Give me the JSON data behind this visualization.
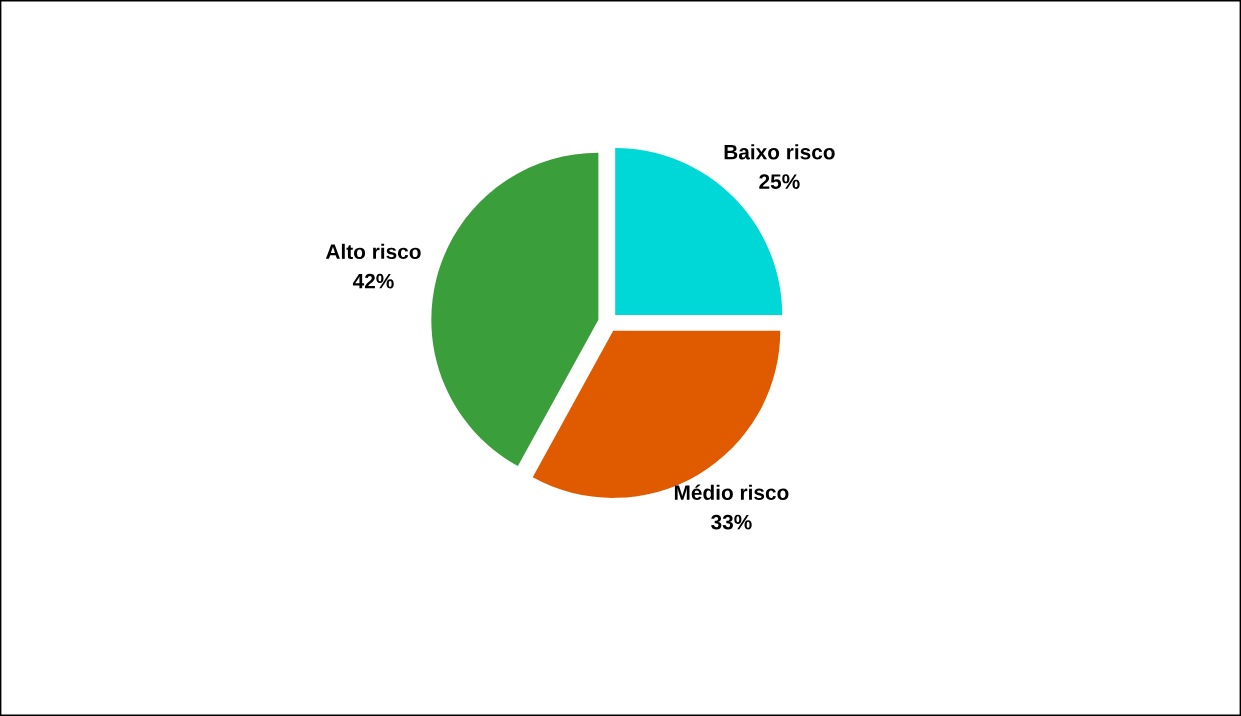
{
  "chart_data": {
    "type": "pie",
    "categories": [
      "Baixo risco",
      "Médio risco",
      "Alto risco"
    ],
    "values": [
      25,
      33,
      42
    ],
    "value_labels": [
      "25%",
      "33%",
      "42%"
    ],
    "colors": [
      "#00d8d8",
      "#e05a00",
      "#3a9e3a"
    ]
  }
}
